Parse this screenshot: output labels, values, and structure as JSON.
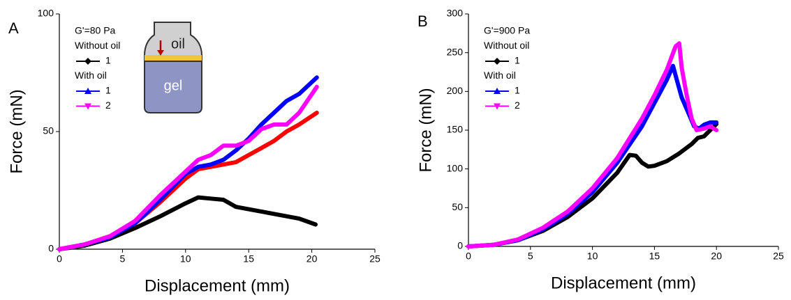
{
  "chart_data": [
    {
      "type": "line",
      "panel_label": "A",
      "legend_title": "G'=80 Pa",
      "xlabel": "Displacement (mm)",
      "ylabel": "Force (mN)",
      "xlim": [
        0,
        25
      ],
      "ylim": [
        0,
        100
      ],
      "xticks": [
        0,
        5,
        10,
        15,
        20,
        25
      ],
      "yticks": [
        0,
        50,
        100
      ],
      "inset": {
        "labels": [
          "oil",
          "gel"
        ]
      },
      "series": [
        {
          "group": "Without oil",
          "name": "1",
          "color": "#000000",
          "marker": "diamond",
          "x": [
            0,
            2,
            4,
            6,
            8,
            10,
            11,
            12,
            13,
            14,
            16,
            18,
            19,
            20.3
          ],
          "values": [
            0,
            1.5,
            4.5,
            9,
            14,
            19.5,
            22,
            21.5,
            21,
            18,
            16,
            14,
            13,
            10.5
          ]
        },
        {
          "group": "With oil",
          "name": "1",
          "color": "#0000ff",
          "marker": "triangle-up",
          "x": [
            0,
            2,
            4,
            6,
            8,
            10,
            11,
            12,
            13,
            14,
            15,
            16,
            17,
            18,
            19,
            20.4
          ],
          "values": [
            0,
            2,
            5,
            11,
            21,
            32,
            35,
            36,
            38,
            42,
            47,
            53,
            58,
            63,
            66,
            73
          ]
        },
        {
          "group": "With oil",
          "name": "2",
          "color": "#ff00ff",
          "marker": "triangle-down",
          "x": [
            0,
            2,
            4,
            6,
            8,
            10,
            11,
            12,
            13,
            14,
            15,
            16,
            17,
            18,
            19,
            20.4
          ],
          "values": [
            0,
            2,
            5.5,
            12,
            23,
            33,
            38,
            40,
            44,
            44,
            46,
            51,
            53,
            53,
            58,
            69
          ]
        },
        {
          "color": "#ff0000",
          "x": [
            0,
            2,
            4,
            6,
            8,
            10,
            11,
            12,
            13,
            14,
            15,
            16,
            17,
            18,
            19,
            20.4
          ],
          "values": [
            0,
            2,
            5,
            11,
            20,
            30,
            34,
            35,
            36,
            37,
            40,
            43,
            46,
            50,
            53,
            58
          ]
        }
      ]
    },
    {
      "type": "line",
      "panel_label": "B",
      "legend_title": "G'=900 Pa",
      "xlabel": "Displacement (mm)",
      "ylabel": "Force (mN)",
      "xlim": [
        0,
        25
      ],
      "ylim": [
        0,
        300
      ],
      "xticks": [
        0,
        5,
        10,
        15,
        20,
        25
      ],
      "yticks": [
        0,
        50,
        100,
        150,
        200,
        250,
        300
      ],
      "series": [
        {
          "group": "Without oil",
          "name": "1",
          "color": "#000000",
          "marker": "diamond",
          "x": [
            0,
            2,
            4,
            6,
            8,
            10,
            12,
            13,
            13.5,
            14,
            14.5,
            15,
            16,
            17,
            18,
            18.5,
            19,
            20
          ],
          "values": [
            0,
            2,
            8,
            20,
            38,
            62,
            95,
            118,
            117,
            108,
            103,
            104,
            110,
            120,
            132,
            140,
            142,
            158
          ]
        },
        {
          "group": "With oil",
          "name": "1",
          "color": "#0000ff",
          "marker": "triangle-up",
          "x": [
            0,
            2,
            4,
            6,
            8,
            10,
            12,
            14,
            15,
            16,
            16.5,
            16.8,
            17.2,
            17.8,
            18.2,
            18.6,
            19,
            19.5,
            20
          ],
          "values": [
            0,
            2,
            8,
            22,
            42,
            70,
            108,
            155,
            185,
            215,
            233,
            215,
            192,
            170,
            155,
            152,
            157,
            160,
            160
          ]
        },
        {
          "group": "With oil",
          "name": "2",
          "color": "#ff00ff",
          "marker": "triangle-down",
          "x": [
            0,
            2,
            4,
            6,
            8,
            10,
            12,
            14,
            15,
            16,
            16.7,
            17,
            17.2,
            17.6,
            18,
            18.4,
            19,
            19.5,
            20
          ],
          "values": [
            0,
            2,
            9,
            24,
            45,
            75,
            114,
            165,
            195,
            228,
            258,
            262,
            230,
            195,
            165,
            150,
            152,
            155,
            150
          ]
        }
      ]
    }
  ]
}
